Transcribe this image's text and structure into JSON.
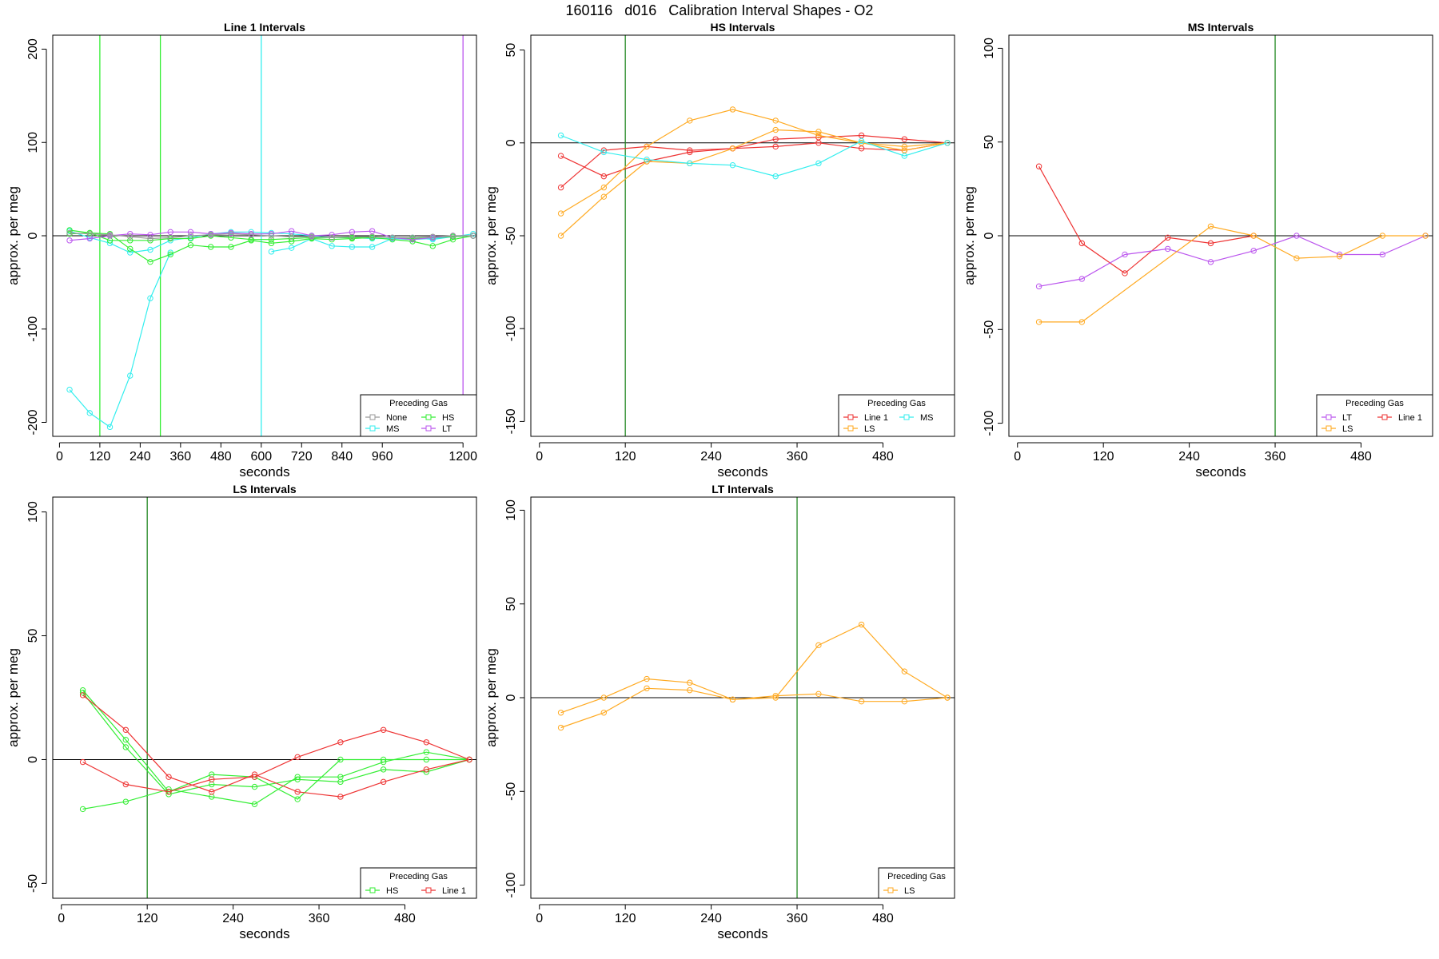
{
  "page": {
    "title": "160116   d016   Calibration Interval Shapes - O2"
  },
  "colors": {
    "None": "#999999",
    "HS": "#33ee33",
    "MS": "#33eeee",
    "LT": "#bb55ee",
    "Line 1": "#ee3333",
    "LS": "#ffaa22",
    "vline_green": "#228822",
    "zero_line": "#000000"
  },
  "chart_data": [
    {
      "type": "line",
      "title": "Line 1 Intervals",
      "xlabel": "seconds",
      "ylabel": "approx. per meg",
      "xlim": [
        -20,
        1240
      ],
      "ylim": [
        -215,
        215
      ],
      "xticks": [
        0,
        120,
        240,
        360,
        480,
        600,
        720,
        840,
        960,
        1200
      ],
      "yticks": [
        -200,
        -100,
        0,
        100,
        200
      ],
      "hline": 0,
      "vlines": [
        {
          "x": 120,
          "color": "HS"
        },
        {
          "x": 300,
          "color": "HS"
        },
        {
          "x": 600,
          "color": "MS"
        },
        {
          "x": 1200,
          "color": "LT"
        }
      ],
      "legend": {
        "title": "Preceding Gas",
        "position": "bottom-right",
        "columns": 2,
        "entries": [
          "None",
          "HS",
          "MS",
          "LT"
        ]
      },
      "series": [
        {
          "name": "MS",
          "x": [
            30,
            90,
            150,
            210,
            270,
            330
          ],
          "y": [
            -165,
            -190,
            -205,
            -150,
            -67,
            -18
          ]
        },
        {
          "name": "MS",
          "x": [
            30,
            90,
            150,
            210,
            270,
            330,
            390,
            450,
            510,
            570,
            630,
            690,
            750,
            810,
            870,
            930,
            990,
            1050,
            1110,
            1170,
            1230
          ],
          "y": [
            5,
            -2,
            -8,
            -18,
            -15,
            -5,
            -2,
            2,
            4,
            4,
            3,
            2,
            0,
            -2,
            -2,
            -3,
            -3,
            -4,
            -3,
            -1,
            2
          ]
        },
        {
          "name": "MS",
          "x": [
            630,
            690,
            750,
            810,
            870,
            930,
            990,
            1050,
            1110,
            1170,
            1230
          ],
          "y": [
            -17,
            -13,
            -3,
            -11,
            -12,
            -12,
            -3,
            -2,
            -4,
            -1,
            0
          ]
        },
        {
          "name": "HS",
          "x": [
            30,
            90,
            150,
            210,
            270,
            330,
            390,
            450,
            510,
            570,
            630,
            690,
            750,
            810,
            870,
            930,
            990,
            1050,
            1110,
            1170,
            1230
          ],
          "y": [
            6,
            3,
            2,
            -14,
            -28,
            -20,
            -10,
            -12,
            -12,
            -5,
            -8,
            -6,
            -3,
            -4,
            -3,
            -2,
            -4,
            -6,
            -11,
            -4,
            0
          ]
        },
        {
          "name": "HS",
          "x": [
            30,
            90,
            150,
            210,
            270,
            330,
            390,
            450,
            510,
            570,
            630,
            690,
            750,
            810,
            870,
            930,
            990,
            1050,
            1110,
            1170,
            1230
          ],
          "y": [
            2,
            3,
            -5,
            -5,
            -5,
            -3,
            -3,
            0,
            -2,
            -4,
            -4,
            -3,
            -2,
            -2,
            -2,
            -1,
            -2,
            -3,
            -2,
            -1,
            0
          ]
        },
        {
          "name": "LT",
          "x": [
            30,
            90,
            150,
            210,
            270,
            330,
            390,
            450,
            510,
            570,
            630,
            690,
            750,
            810,
            870,
            930,
            990,
            1050,
            1110,
            1170,
            1230
          ],
          "y": [
            -5,
            -3,
            0,
            2,
            1,
            4,
            4,
            2,
            3,
            2,
            2,
            5,
            0,
            1,
            4,
            5,
            -2,
            -4,
            -2,
            0,
            0
          ]
        },
        {
          "name": "None",
          "x": [
            30,
            90,
            150,
            210,
            270,
            330,
            390,
            450,
            510,
            570,
            630,
            690,
            750,
            810,
            870,
            930,
            990,
            1050,
            1110,
            1170,
            1230
          ],
          "y": [
            3,
            2,
            1,
            -1,
            -3,
            -2,
            0,
            1,
            2,
            1,
            0,
            -1,
            -1,
            -2,
            -1,
            -1,
            -2,
            -2,
            -1,
            0,
            0
          ]
        }
      ]
    },
    {
      "type": "line",
      "title": "HS Intervals",
      "xlabel": "seconds",
      "ylabel": "approx. per meg",
      "xlim": [
        -12,
        580
      ],
      "ylim": [
        -158,
        58
      ],
      "xticks": [
        0,
        120,
        240,
        360,
        480
      ],
      "yticks": [
        -150,
        -100,
        -50,
        0,
        50
      ],
      "hline": 0,
      "vlines": [
        {
          "x": 120,
          "color": "vline_green"
        }
      ],
      "legend": {
        "title": "Preceding Gas",
        "position": "bottom-right",
        "columns": 2,
        "entries": [
          "Line 1",
          "MS",
          "LS"
        ]
      },
      "series": [
        {
          "name": "Line 1",
          "x": [
            30,
            90,
            150,
            210,
            270,
            330,
            390,
            450,
            510,
            570
          ],
          "y": [
            -7,
            -18,
            -10,
            -5,
            -3,
            -2,
            0,
            -3,
            -4,
            0
          ]
        },
        {
          "name": "Line 1",
          "x": [
            30,
            90,
            150,
            210,
            270,
            330,
            390,
            450,
            510,
            570
          ],
          "y": [
            -24,
            -4,
            -2,
            -4,
            -3,
            2,
            3,
            4,
            2,
            0
          ]
        },
        {
          "name": "LS",
          "x": [
            30,
            90,
            150,
            210,
            270,
            330,
            390,
            450,
            510,
            570
          ],
          "y": [
            -38,
            -24,
            -2,
            12,
            18,
            12,
            4,
            0,
            -2,
            0
          ]
        },
        {
          "name": "LS",
          "x": [
            30,
            90,
            150,
            210,
            270,
            330,
            390,
            450,
            510,
            570
          ],
          "y": [
            -50,
            -29,
            -10,
            -11,
            -3,
            7,
            6,
            0,
            -4,
            0
          ]
        },
        {
          "name": "MS",
          "x": [
            30,
            90,
            150,
            210,
            270,
            330,
            390,
            450,
            510,
            570
          ],
          "y": [
            4,
            -5,
            -9,
            -11,
            -12,
            -18,
            -11,
            1,
            -7,
            0
          ]
        }
      ]
    },
    {
      "type": "line",
      "title": "MS Intervals",
      "xlabel": "seconds",
      "ylabel": "approx. per meg",
      "xlim": [
        -12,
        580
      ],
      "ylim": [
        -107,
        107
      ],
      "xticks": [
        0,
        120,
        240,
        360,
        480
      ],
      "yticks": [
        -100,
        -50,
        0,
        50,
        100
      ],
      "hline": 0,
      "vlines": [
        {
          "x": 360,
          "color": "vline_green"
        }
      ],
      "legend": {
        "title": "Preceding Gas",
        "position": "bottom-right",
        "columns": 2,
        "entries": [
          "LT",
          "Line 1",
          "LS"
        ]
      },
      "series": [
        {
          "name": "Line 1",
          "x": [
            30,
            90,
            150,
            210,
            270,
            330
          ],
          "y": [
            37,
            -4,
            -20,
            -1,
            -4,
            0
          ]
        },
        {
          "name": "LT",
          "x": [
            30,
            90,
            150,
            210,
            270,
            330,
            390,
            450,
            510,
            570
          ],
          "y": [
            -27,
            -23,
            -10,
            -7,
            -14,
            -8,
            0,
            -10,
            -10,
            0
          ]
        },
        {
          "name": "LS",
          "x": [
            30,
            90,
            270,
            330,
            390,
            450,
            510,
            570
          ],
          "y": [
            -46,
            -46,
            5,
            0,
            -12,
            -11,
            0,
            0
          ]
        }
      ]
    },
    {
      "type": "line",
      "title": "LS Intervals",
      "xlabel": "seconds",
      "ylabel": "approx. per meg",
      "xlim": [
        -12,
        580
      ],
      "ylim": [
        -56,
        106
      ],
      "xticks": [
        0,
        120,
        240,
        360,
        480
      ],
      "yticks": [
        -50,
        0,
        50,
        100
      ],
      "hline": 0,
      "vlines": [
        {
          "x": 120,
          "color": "vline_green"
        }
      ],
      "legend": {
        "title": "Preceding Gas",
        "position": "bottom-right",
        "columns": 2,
        "entries": [
          "HS",
          "Line 1"
        ]
      },
      "series": [
        {
          "name": "HS",
          "x": [
            30,
            90,
            150,
            210,
            270,
            330,
            390,
            450,
            510,
            570
          ],
          "y": [
            -20,
            -17,
            -12,
            -15,
            -18,
            -7,
            -7,
            -1,
            3,
            0
          ]
        },
        {
          "name": "HS",
          "x": [
            30,
            90,
            150,
            210,
            270,
            330,
            390,
            450,
            510,
            570
          ],
          "y": [
            28,
            8,
            -13,
            -6,
            -7,
            -16,
            0,
            0,
            0,
            0
          ]
        },
        {
          "name": "HS",
          "x": [
            30,
            90,
            150,
            210,
            270,
            330,
            390,
            450,
            510,
            570
          ],
          "y": [
            27,
            5,
            -14,
            -10,
            -11,
            -8,
            -9,
            -4,
            -5,
            0
          ]
        },
        {
          "name": "Line 1",
          "x": [
            30,
            90,
            150,
            210,
            270,
            330,
            390,
            450,
            510,
            570
          ],
          "y": [
            -1,
            -10,
            -13,
            -8,
            -7,
            1,
            7,
            12,
            7,
            0
          ]
        },
        {
          "name": "Line 1",
          "x": [
            30,
            90,
            150,
            210,
            270,
            330,
            390,
            450,
            510,
            570
          ],
          "y": [
            26,
            12,
            -7,
            -13,
            -6,
            -13,
            -15,
            -9,
            -4,
            0
          ]
        }
      ]
    },
    {
      "type": "line",
      "title": "LT Intervals",
      "xlabel": "seconds",
      "ylabel": "approx. per meg",
      "xlim": [
        -12,
        580
      ],
      "ylim": [
        -107,
        107
      ],
      "xticks": [
        0,
        120,
        240,
        360,
        480
      ],
      "yticks": [
        -100,
        -50,
        0,
        50,
        100
      ],
      "hline": 0,
      "vlines": [
        {
          "x": 360,
          "color": "vline_green"
        }
      ],
      "legend": {
        "title": "Preceding Gas",
        "position": "bottom-right",
        "columns": 1,
        "entries": [
          "LS"
        ]
      },
      "series": [
        {
          "name": "LS",
          "x": [
            30,
            90,
            150,
            210,
            270,
            330,
            390,
            450,
            510,
            570
          ],
          "y": [
            -8,
            0,
            10,
            8,
            -1,
            0,
            28,
            39,
            14,
            0
          ]
        },
        {
          "name": "LS",
          "x": [
            30,
            90,
            150,
            210,
            270,
            330,
            390,
            450,
            510,
            570
          ],
          "y": [
            -16,
            -8,
            5,
            4,
            -1,
            1,
            2,
            -2,
            -2,
            0
          ]
        }
      ]
    }
  ]
}
